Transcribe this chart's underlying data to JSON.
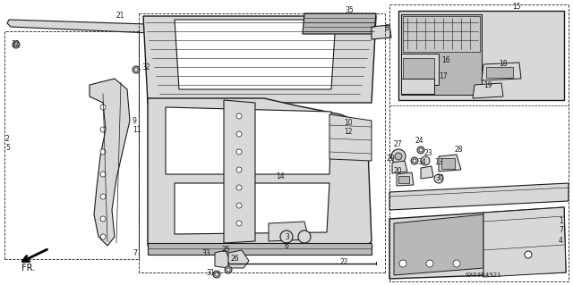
{
  "bg_color": "#ffffff",
  "line_color": "#1a1a1a",
  "fig_width": 6.4,
  "fig_height": 3.19,
  "dpi": 100,
  "diagram_code": "SX03B4921"
}
